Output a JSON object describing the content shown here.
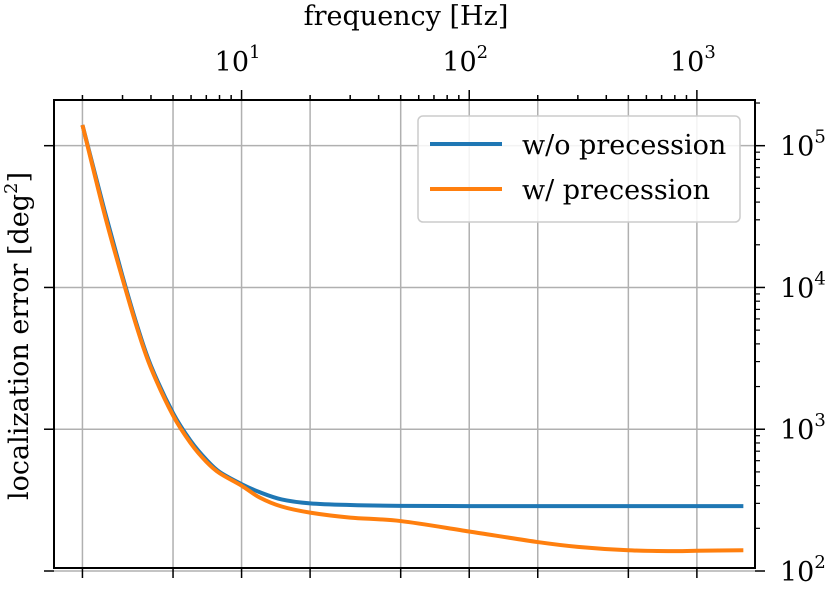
{
  "chart_data": {
    "type": "line",
    "title": "",
    "xlabel": "frequency [Hz]",
    "ylabel": "localization error [deg",
    "ylabel_sup": "2",
    "ylabel_close": "]",
    "xscale": "log",
    "yscale": "log",
    "xlim": [
      1.5,
      1800
    ],
    "ylim": [
      105,
      210000
    ],
    "x_axis_position": "top",
    "y_axis_position": "right",
    "grid": true,
    "legend_position": "top-right",
    "x_ticks": [
      {
        "value": 10,
        "base": "10",
        "exp": "1"
      },
      {
        "value": 100,
        "base": "10",
        "exp": "2"
      },
      {
        "value": 1000,
        "base": "10",
        "exp": "3"
      }
    ],
    "y_ticks": [
      {
        "value": 100,
        "base": "10",
        "exp": "2"
      },
      {
        "value": 1000,
        "base": "10",
        "exp": "3"
      },
      {
        "value": 10000,
        "base": "10",
        "exp": "4"
      },
      {
        "value": 100000,
        "base": "10",
        "exp": "5"
      }
    ],
    "series": [
      {
        "name": "w/o precession",
        "color": "#1f77b4",
        "x": [
          2,
          2.5,
          3,
          3.5,
          4,
          5,
          6,
          7,
          8,
          10,
          12,
          15,
          20,
          30,
          50,
          100,
          200,
          500,
          1000,
          1600
        ],
        "y": [
          140000,
          35000,
          12000,
          5200,
          2800,
          1300,
          820,
          610,
          500,
          410,
          360,
          320,
          300,
          292,
          288,
          287,
          287,
          287,
          287,
          287
        ]
      },
      {
        "name": "w/ precession",
        "color": "#ff7f0e",
        "x": [
          2,
          2.5,
          3,
          3.5,
          4,
          5,
          6,
          7,
          8,
          10,
          12,
          15,
          20,
          30,
          50,
          100,
          200,
          300,
          500,
          800,
          1000,
          1600
        ],
        "y": [
          140000,
          33000,
          11500,
          5000,
          2700,
          1250,
          790,
          590,
          490,
          400,
          330,
          285,
          258,
          238,
          225,
          190,
          160,
          148,
          140,
          138,
          139,
          140
        ]
      }
    ]
  }
}
